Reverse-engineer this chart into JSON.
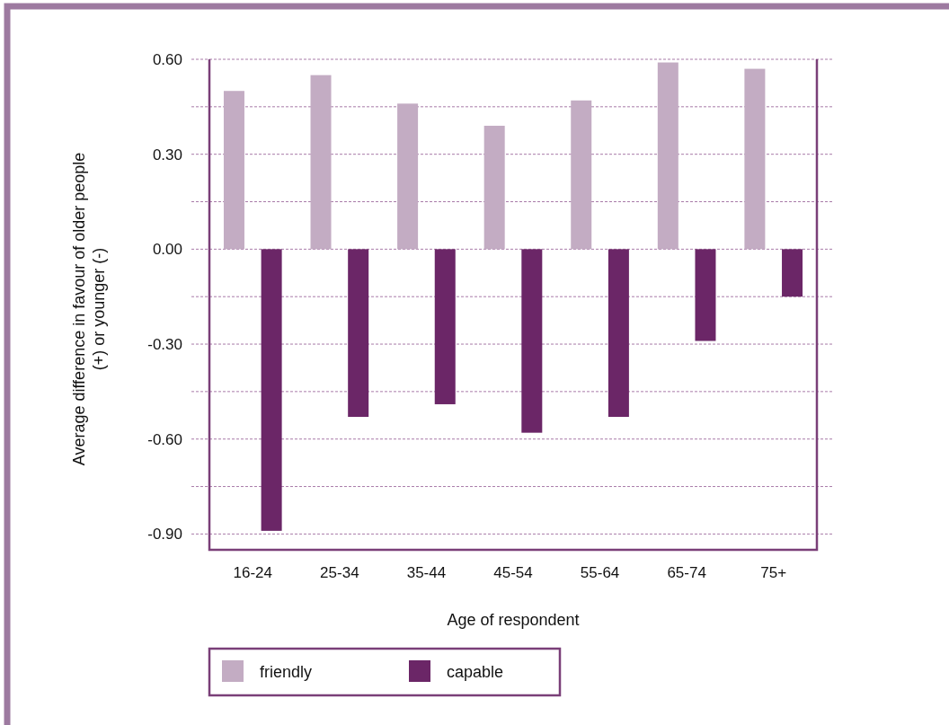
{
  "chart_data": {
    "type": "bar",
    "xlabel": "Age of respondent",
    "ylabel": "Average difference in favour of older people (+) or younger (-)",
    "categories": [
      "16-24",
      "25-34",
      "35-44",
      "45-54",
      "55-64",
      "65-74",
      "75+"
    ],
    "series": [
      {
        "name": "friendly",
        "color": "#c3acc3",
        "values": [
          0.5,
          0.55,
          0.46,
          0.39,
          0.47,
          0.59,
          0.57
        ]
      },
      {
        "name": "capable",
        "color": "#6b2667",
        "values": [
          -0.89,
          -0.53,
          -0.49,
          -0.58,
          -0.53,
          -0.29,
          -0.15
        ]
      }
    ],
    "ylim": [
      -0.95,
      0.6
    ],
    "yticks": [
      {
        "value": -0.9,
        "label": "-0.90"
      },
      {
        "value": -0.75,
        "label": null
      },
      {
        "value": -0.6,
        "label": "-0.60"
      },
      {
        "value": -0.45,
        "label": null
      },
      {
        "value": -0.3,
        "label": "-0.30"
      },
      {
        "value": -0.15,
        "label": null
      },
      {
        "value": 0,
        "label": "0.00"
      },
      {
        "value": 0.15,
        "label": null
      },
      {
        "value": 0.3,
        "label": "0.30"
      },
      {
        "value": 0.45,
        "label": null
      },
      {
        "value": 0.6,
        "label": "0.60"
      }
    ],
    "grid": "y",
    "legend": "bottom"
  }
}
